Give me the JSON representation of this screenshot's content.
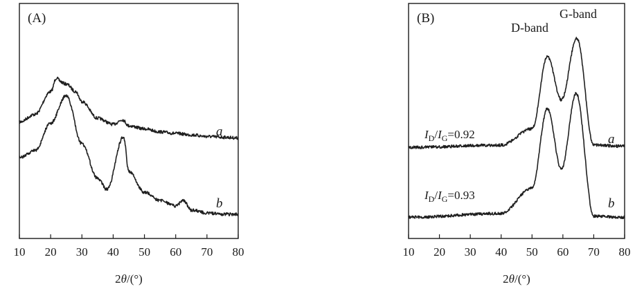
{
  "chart_data": [
    {
      "type": "line",
      "panel_label": "(A)",
      "xlabel_parts": [
        "2",
        "θ",
        "/(°)"
      ],
      "xlim": [
        10,
        80
      ],
      "xticks": [
        10,
        20,
        30,
        40,
        50,
        60,
        70,
        80
      ],
      "y_axis": "no ticks, stacked traces",
      "series": [
        {
          "name": "a",
          "peaks": [
            {
              "x": 21.8,
              "height": 0.95,
              "width": 0.5
            },
            {
              "x": 23.5,
              "height": 0.62,
              "width": 2.5
            },
            {
              "x": 43.5,
              "height": 0.2,
              "width": 1.8
            }
          ],
          "x": [
            10,
            15,
            20,
            22,
            25,
            28,
            30,
            35,
            40,
            43,
            45,
            50,
            55,
            60,
            65,
            70,
            75,
            80
          ],
          "y": [
            0.35,
            0.45,
            0.75,
            0.9,
            0.85,
            0.75,
            0.62,
            0.4,
            0.32,
            0.38,
            0.3,
            0.26,
            0.22,
            0.2,
            0.18,
            0.16,
            0.15,
            0.14
          ]
        },
        {
          "name": "b",
          "peaks": [
            {
              "x": 25.0,
              "height": 0.9,
              "width": 4.5
            },
            {
              "x": 31.2,
              "height": 0.25,
              "width": 0.5
            },
            {
              "x": 43.3,
              "height": 0.55,
              "width": 0.5
            },
            {
              "x": 44.8,
              "height": 0.22,
              "width": 0.7
            },
            {
              "x": 62.5,
              "height": 0.12,
              "width": 0.3
            }
          ],
          "x": [
            10,
            15,
            20,
            25,
            30,
            35,
            38,
            43.3,
            45,
            50,
            55,
            60,
            62.5,
            65,
            70,
            75,
            80
          ],
          "y": [
            0.45,
            0.5,
            0.7,
            0.9,
            0.55,
            0.3,
            0.22,
            0.6,
            0.35,
            0.2,
            0.14,
            0.1,
            0.14,
            0.07,
            0.05,
            0.04,
            0.04
          ]
        }
      ]
    },
    {
      "type": "line",
      "panel_label": "(B)",
      "xlabel_parts": [
        "2",
        "θ",
        "/(°)"
      ],
      "xlim": [
        10,
        80
      ],
      "xticks": [
        10,
        20,
        30,
        40,
        50,
        60,
        70,
        80
      ],
      "annotations": [
        "D-band",
        "G-band"
      ],
      "series": [
        {
          "name": "a",
          "ratio_label": {
            "i1": "I",
            "sub1": "D",
            "i2": "I",
            "sub2": "G",
            "value": "=0.92"
          },
          "peaks": [
            {
              "x": 55.0,
              "height": 0.82,
              "width": 2.8
            },
            {
              "x": 64.5,
              "height": 0.98,
              "width": 2.0
            }
          ],
          "x": [
            10,
            40,
            50,
            55,
            59.5,
            64.5,
            70,
            80
          ],
          "y": [
            0.04,
            0.06,
            0.2,
            0.82,
            0.45,
            0.98,
            0.06,
            0.05
          ]
        },
        {
          "name": "b",
          "ratio_label": {
            "i1": "I",
            "sub1": "D",
            "i2": "I",
            "sub2": "G",
            "value": "=0.93"
          },
          "peaks": [
            {
              "x": 55.0,
              "height": 0.88,
              "width": 2.8
            },
            {
              "x": 64.3,
              "height": 1.0,
              "width": 1.9
            }
          ],
          "x": [
            10,
            40,
            50,
            55,
            59.5,
            64.3,
            70,
            80
          ],
          "y": [
            0.02,
            0.05,
            0.25,
            0.88,
            0.4,
            1.0,
            0.03,
            0.02
          ]
        }
      ]
    }
  ]
}
